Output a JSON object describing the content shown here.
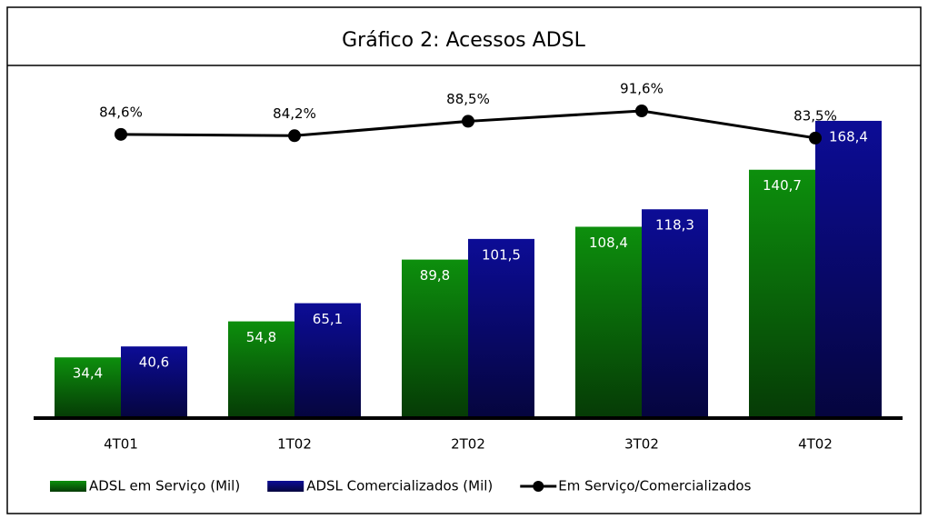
{
  "chart_data": {
    "type": "bar",
    "title": "Gráfico 2: Acessos ADSL",
    "categories": [
      "4T01",
      "1T02",
      "2T02",
      "3T02",
      "4T02"
    ],
    "ylim": [
      0,
      190
    ],
    "y2lim": [
      0,
      100
    ],
    "series": [
      {
        "name": "ADSL em Serviço (Mil)",
        "color": "#0d8f0d",
        "values": [
          34.4,
          54.8,
          89.8,
          108.4,
          140.7
        ],
        "value_labels": [
          "34,4",
          "54,8",
          "89,8",
          "108,4",
          "140,7"
        ]
      },
      {
        "name": "ADSL Comercializados (Mil)",
        "color": "#0c0c96",
        "values": [
          40.6,
          65.1,
          101.5,
          118.3,
          168.4
        ],
        "value_labels": [
          "40,6",
          "65,1",
          "101,5",
          "118,3",
          "168,4"
        ]
      },
      {
        "name": "Em Serviço/Comercializados",
        "type": "line",
        "axis": "y2",
        "color": "#000000",
        "values": [
          84.6,
          84.2,
          88.5,
          91.6,
          83.5
        ],
        "value_labels": [
          "84,6%",
          "84,2%",
          "88,5%",
          "91,6%",
          "83,5%"
        ]
      }
    ]
  }
}
